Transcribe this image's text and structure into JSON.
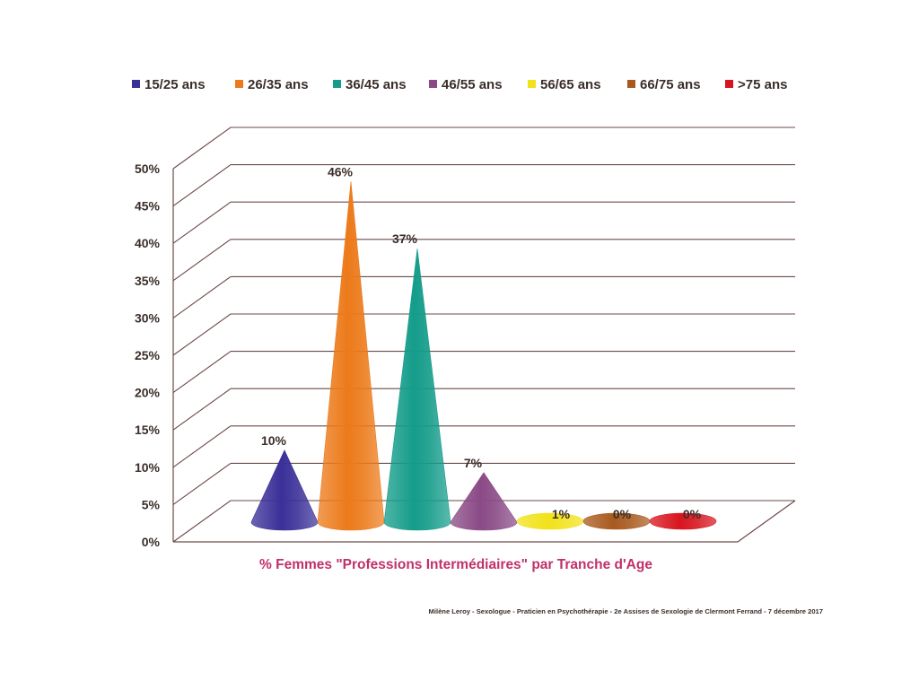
{
  "chart_data": {
    "type": "bar",
    "bar_shape": "cone",
    "title": "% Femmes \"Professions Intermédiaires\" par Tranche d'Age",
    "categories": [
      "15/25 ans",
      "26/35 ans",
      "36/45 ans",
      "46/55 ans",
      "56/65 ans",
      "66/75 ans",
      ">75 ans"
    ],
    "values": [
      10,
      46,
      37,
      7,
      1,
      0,
      0
    ],
    "value_labels": [
      "10%",
      "46%",
      "37%",
      "7%",
      "1%",
      "0%",
      "0%"
    ],
    "colors": [
      "#3a3098",
      "#ec7a1a",
      "#149c8a",
      "#8a4a86",
      "#f2e21a",
      "#a85a1e",
      "#d8141e"
    ],
    "ylim": [
      0,
      50
    ],
    "yticks": [
      "0%",
      "5%",
      "10%",
      "15%",
      "20%",
      "25%",
      "30%",
      "35%",
      "40%",
      "45%",
      "50%"
    ],
    "grid": true,
    "legend_position": "top"
  },
  "footer": "Milène Leroy - Sexologue - Praticien en Psychothérapie - 2e Assises de Sexologie de Clermont Ferrand - 7 décembre 2017"
}
